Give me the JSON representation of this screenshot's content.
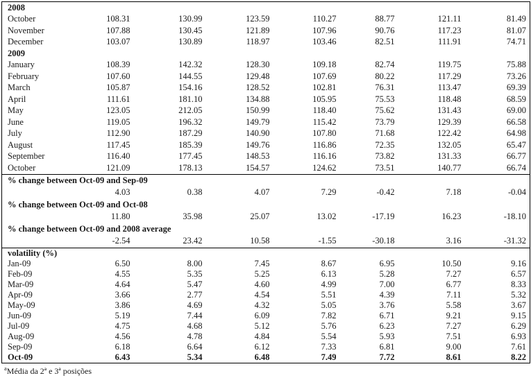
{
  "table": {
    "sections": [
      {
        "kind": "year",
        "label": "2008"
      },
      {
        "kind": "months",
        "rows": [
          {
            "label": "October",
            "values": [
              "108.31",
              "130.99",
              "123.59",
              "110.27",
              "88.77",
              "121.11",
              "81.49"
            ]
          },
          {
            "label": "November",
            "values": [
              "107.88",
              "130.45",
              "121.89",
              "107.96",
              "90.76",
              "117.23",
              "81.07"
            ]
          },
          {
            "label": "December",
            "values": [
              "103.07",
              "130.89",
              "118.97",
              "103.46",
              "82.51",
              "111.91",
              "74.71"
            ]
          }
        ]
      },
      {
        "kind": "year",
        "label": "2009"
      },
      {
        "kind": "months",
        "rows": [
          {
            "label": "January",
            "values": [
              "108.39",
              "142.32",
              "128.30",
              "109.18",
              "82.74",
              "119.75",
              "75.88"
            ]
          },
          {
            "label": "February",
            "values": [
              "107.60",
              "144.55",
              "129.48",
              "107.69",
              "80.22",
              "117.29",
              "73.26"
            ]
          },
          {
            "label": "March",
            "values": [
              "105.87",
              "154.16",
              "128.52",
              "102.81",
              "76.31",
              "113.47",
              "69.39"
            ]
          },
          {
            "label": "April",
            "values": [
              "111.61",
              "181.10",
              "134.88",
              "105.95",
              "75.53",
              "118.48",
              "68.59"
            ]
          },
          {
            "label": "May",
            "values": [
              "123.05",
              "212.05",
              "150.99",
              "118.40",
              "75.62",
              "131.43",
              "69.00"
            ]
          },
          {
            "label": "June",
            "values": [
              "119.05",
              "196.32",
              "149.79",
              "115.42",
              "73.79",
              "129.39",
              "66.58"
            ]
          },
          {
            "label": "July",
            "values": [
              "112.90",
              "187.29",
              "140.90",
              "107.80",
              "71.68",
              "122.42",
              "64.98"
            ]
          },
          {
            "label": "August",
            "values": [
              "117.45",
              "185.39",
              "149.76",
              "116.86",
              "72.35",
              "132.05",
              "65.47"
            ]
          },
          {
            "label": "September",
            "values": [
              "116.40",
              "177.45",
              "148.53",
              "116.16",
              "73.82",
              "131.33",
              "66.77"
            ]
          },
          {
            "label": "October",
            "values": [
              "121.09",
              "178.13",
              "154.57",
              "124.62",
              "73.51",
              "140.77",
              "66.74"
            ]
          }
        ]
      },
      {
        "kind": "pct",
        "header": "% change between Oct-09 and Sep-09",
        "values": [
          "4.03",
          "0.38",
          "4.07",
          "7.29",
          "-0.42",
          "7.18",
          "-0.04"
        ]
      },
      {
        "kind": "pct",
        "header": "% change between Oct-09 and Oct-08",
        "values": [
          "11.80",
          "35.98",
          "25.07",
          "13.02",
          "-17.19",
          "16.23",
          "-18.10"
        ]
      },
      {
        "kind": "pct",
        "header": "% change between Oct-09 and 2008 average",
        "values": [
          "-2.54",
          "23.42",
          "10.58",
          "-1.55",
          "-30.18",
          "3.16",
          "-31.32"
        ]
      },
      {
        "kind": "volatility",
        "header": "volatility (%)",
        "rows": [
          {
            "label": "Jan-09",
            "values": [
              "6.50",
              "8.00",
              "7.45",
              "8.67",
              "6.95",
              "10.50",
              "9.16"
            ]
          },
          {
            "label": "Feb-09",
            "values": [
              "4.55",
              "5.35",
              "5.25",
              "6.13",
              "5.28",
              "7.27",
              "6.57"
            ]
          },
          {
            "label": "Mar-09",
            "values": [
              "4.64",
              "5.47",
              "4.60",
              "4.99",
              "7.00",
              "6.77",
              "8.33"
            ]
          },
          {
            "label": "Apr-09",
            "values": [
              "3.66",
              "2.77",
              "4.54",
              "5.51",
              "4.39",
              "7.11",
              "5.32"
            ]
          },
          {
            "label": "May-09",
            "values": [
              "3.86",
              "4.69",
              "4.32",
              "5.05",
              "3.76",
              "5.58",
              "3.67"
            ]
          },
          {
            "label": "Jun-09",
            "values": [
              "5.19",
              "7.44",
              "6.09",
              "7.82",
              "6.71",
              "9.21",
              "9.15"
            ]
          },
          {
            "label": "Jul-09",
            "values": [
              "4.75",
              "4.68",
              "5.12",
              "5.76",
              "6.23",
              "7.27",
              "6.29"
            ]
          },
          {
            "label": "Aug-09",
            "values": [
              "4.56",
              "4.78",
              "4.84",
              "5.54",
              "5.93",
              "7.51",
              "6.93"
            ]
          },
          {
            "label": "Sep-09",
            "values": [
              "6.18",
              "6.64",
              "6.12",
              "7.33",
              "6.81",
              "9.00",
              "7.61"
            ]
          },
          {
            "label": "Oct-09",
            "values": [
              "6.43",
              "5.34",
              "6.48",
              "7.49",
              "7.72",
              "8.61",
              "8.22"
            ],
            "bold": true
          }
        ]
      }
    ],
    "footnote_marker": "a",
    "footnote_text": "Média da 2ª e 3ª posições"
  }
}
